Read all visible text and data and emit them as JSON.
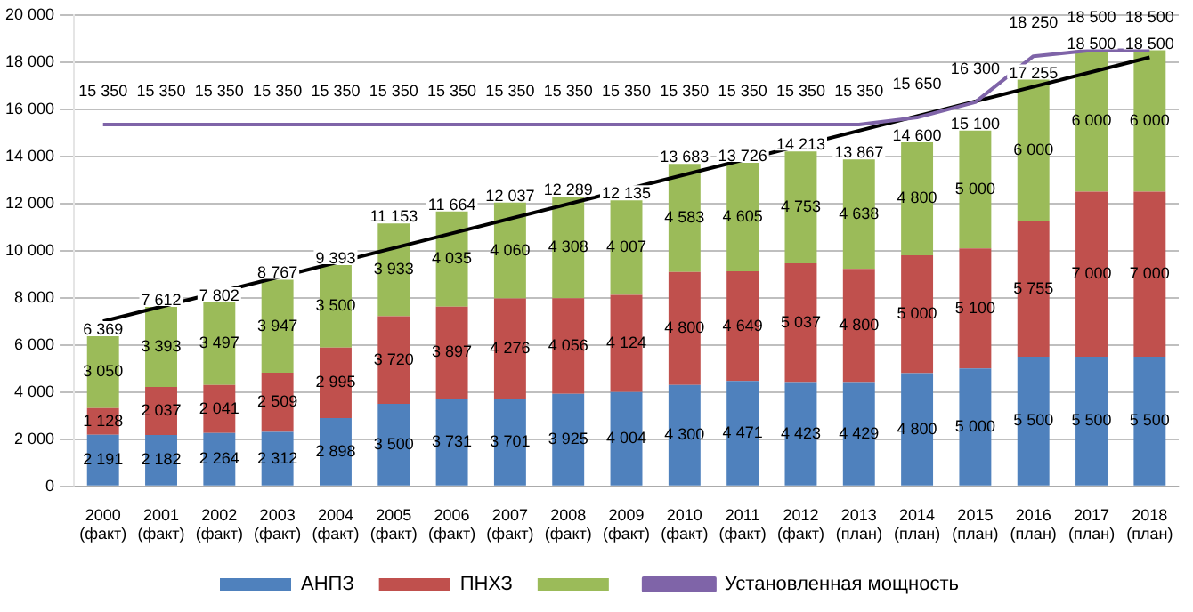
{
  "chart_data": {
    "type": "bar",
    "stacked": true,
    "categories": [
      "2000 (факт)",
      "2001 (факт)",
      "2002 (факт)",
      "2003 (факт)",
      "2004 (факт)",
      "2005 (факт)",
      "2006 (факт)",
      "2007 (факт)",
      "2008 (факт)",
      "2009 (факт)",
      "2010 (факт)",
      "2011 (факт)",
      "2012 (факт)",
      "2013 (план)",
      "2014 (план)",
      "2015 (план)",
      "2016 (план)",
      "2017 (план)",
      "2018 (план)"
    ],
    "series": [
      {
        "name": "АНПЗ",
        "color": "#4f81bd",
        "values": [
          2191,
          2182,
          2264,
          2312,
          2898,
          3500,
          3731,
          3701,
          3925,
          4004,
          4300,
          4471,
          4423,
          4429,
          4800,
          5000,
          5500,
          5500,
          5500
        ]
      },
      {
        "name": "ПНХЗ",
        "color": "#c0504d",
        "values": [
          1128,
          2037,
          2041,
          2509,
          2995,
          3720,
          3897,
          4276,
          4056,
          4124,
          4800,
          4649,
          5037,
          4800,
          5000,
          5100,
          5755,
          7000,
          7000
        ]
      },
      {
        "color": "#9bbb59",
        "values": [
          3050,
          3393,
          3497,
          3947,
          3500,
          3933,
          4035,
          4060,
          4308,
          4007,
          4583,
          4605,
          4753,
          4638,
          4800,
          5000,
          6000,
          6000,
          6000
        ]
      },
      {
        "type": "line",
        "name": "Установленная мощность",
        "color": "#7f64a8",
        "marker": "none",
        "values": [
          15350,
          15350,
          15350,
          15350,
          15350,
          15350,
          15350,
          15350,
          15350,
          15350,
          15350,
          15350,
          15350,
          15350,
          15650,
          16300,
          18250,
          18500,
          18500
        ]
      },
      {
        "type": "line",
        "color": "#000000",
        "marker": "none",
        "x": [
          "2000 (факт)",
          "2018 (план)"
        ],
        "values": [
          7000,
          18200
        ],
        "value_labels": [
          null,
          null
        ]
      }
    ],
    "data_labels": true,
    "totals": [
      "6 369",
      "7 612",
      "7 802",
      "8 767",
      "9 393",
      "11 153",
      "11 664",
      "12 037",
      "12 289",
      "12 135",
      "13 683",
      "13 726",
      "14 213",
      "13 867",
      "14 600",
      "15 100",
      "17 255",
      "18 500",
      "18 500"
    ],
    "ylim": [
      0,
      20000
    ],
    "yticks": [
      {
        "value": 0,
        "label": "0"
      },
      {
        "value": 2000,
        "label": "2 000"
      },
      {
        "value": 4000,
        "label": "4 000"
      },
      {
        "value": 6000,
        "label": "6 000"
      },
      {
        "value": 8000,
        "label": "8 000"
      },
      {
        "value": 10000,
        "label": "10 000"
      },
      {
        "value": 12000,
        "label": "12 000"
      },
      {
        "value": 14000,
        "label": "14 000"
      },
      {
        "value": 16000,
        "label": "16 000"
      },
      {
        "value": 18000,
        "label": "18 000"
      },
      {
        "value": 20000,
        "label": "20 000"
      }
    ],
    "grid": "y",
    "legend": "bottom"
  }
}
